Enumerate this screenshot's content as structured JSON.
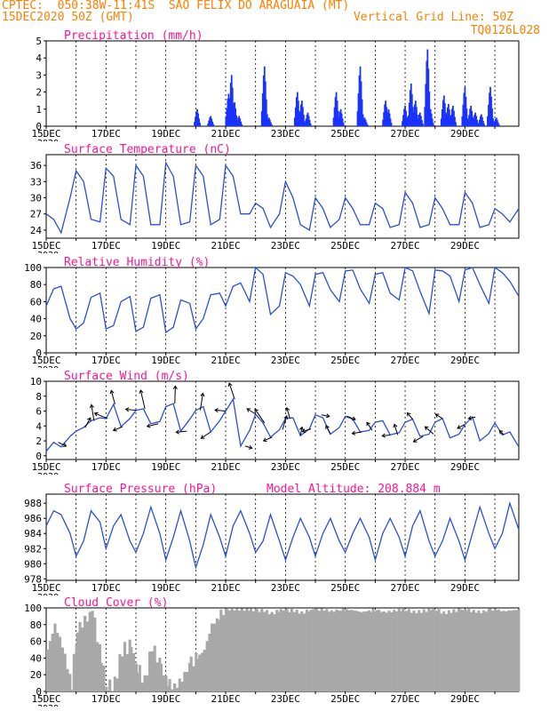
{
  "header": {
    "line1": "CPTEC:  050:38W-11:41S  SAO FELIX DO ARAGUAIA (MT)",
    "line2_left": "15DEC2020 50Z (GMT)",
    "line2_right": "Vertical Grid Line: 50Z",
    "line3_right": "TQ0126L028"
  },
  "colors": {
    "header": "#ff7f00",
    "title": "#ff1493",
    "line": "#2a4fd8",
    "bar": "#1a33ff",
    "cloud": "#a8a8a8",
    "grid": "#000000"
  },
  "x_ticks": [
    "15DEC",
    "17DEC",
    "19DEC",
    "21DEC",
    "23DEC",
    "25DEC",
    "27DEC",
    "29DEC"
  ],
  "x_clip_label": "2020",
  "chart_data": [
    {
      "type": "bar",
      "title": "Precipitation (mm/h)",
      "ylim": [
        0,
        5
      ],
      "yticks": [
        0,
        1,
        2,
        3,
        4,
        5
      ],
      "xlim_days": [
        0,
        15.8
      ],
      "events": [
        [
          5.05,
          1.0
        ],
        [
          5.5,
          0.6
        ],
        [
          6.1,
          1.9
        ],
        [
          6.2,
          3.0
        ],
        [
          6.3,
          1.4
        ],
        [
          6.45,
          0.6
        ],
        [
          7.3,
          3.5
        ],
        [
          7.45,
          0.5
        ],
        [
          8.4,
          2.0
        ],
        [
          8.55,
          1.5
        ],
        [
          8.75,
          0.8
        ],
        [
          9.7,
          2.0
        ],
        [
          9.85,
          1.0
        ],
        [
          10.5,
          3.5
        ],
        [
          10.65,
          0.5
        ],
        [
          11.35,
          1.5
        ],
        [
          11.45,
          1.0
        ],
        [
          12.0,
          1.2
        ],
        [
          12.2,
          2.5
        ],
        [
          12.35,
          1.5
        ],
        [
          12.5,
          0.8
        ],
        [
          12.75,
          4.5
        ],
        [
          12.85,
          1.0
        ],
        [
          13.3,
          1.8
        ],
        [
          13.45,
          1.3
        ],
        [
          13.6,
          1.2
        ],
        [
          14.0,
          2.3
        ],
        [
          14.2,
          1.2
        ],
        [
          14.35,
          0.8
        ],
        [
          14.55,
          0.7
        ],
        [
          14.85,
          2.3
        ],
        [
          15.05,
          0.5
        ]
      ]
    },
    {
      "type": "line",
      "title": "Surface Temperature (nC)",
      "ylim": [
        22.5,
        38
      ],
      "yticks": [
        24,
        27,
        30,
        33,
        36
      ],
      "x": [
        0,
        0.25,
        0.5,
        0.8,
        1,
        1.25,
        1.5,
        1.8,
        2,
        2.25,
        2.5,
        2.8,
        3,
        3.25,
        3.5,
        3.8,
        4,
        4.25,
        4.5,
        4.8,
        5,
        5.25,
        5.5,
        5.8,
        6,
        6.25,
        6.5,
        6.8,
        7,
        7.25,
        7.5,
        7.8,
        8,
        8.25,
        8.5,
        8.8,
        9,
        9.25,
        9.5,
        9.8,
        10,
        10.25,
        10.5,
        10.8,
        11,
        11.25,
        11.5,
        11.8,
        12,
        12.25,
        12.5,
        12.8,
        13,
        13.25,
        13.5,
        13.8,
        14,
        14.25,
        14.5,
        14.8,
        15,
        15.25,
        15.5,
        15.8
      ],
      "y": [
        27,
        26,
        23.5,
        30,
        35,
        33,
        26,
        25.5,
        35.5,
        34,
        26,
        25,
        36,
        34,
        25,
        25,
        36.5,
        34,
        25,
        25.5,
        36,
        34,
        25,
        26,
        36,
        34,
        27,
        27,
        29,
        28,
        24.5,
        27,
        33,
        30,
        25,
        24,
        30,
        28,
        24.5,
        26,
        30,
        28,
        25,
        25,
        29,
        28,
        24.5,
        25,
        31,
        29,
        24.5,
        25,
        30,
        28,
        25,
        25,
        31,
        29,
        24.5,
        25,
        28,
        27,
        25.5,
        28
      ]
    },
    {
      "type": "line",
      "title": "Relative Humidity (%)",
      "ylim": [
        0,
        100
      ],
      "yticks": [
        0,
        20,
        40,
        60,
        80,
        100
      ],
      "x": [
        0,
        0.25,
        0.5,
        0.8,
        1,
        1.25,
        1.5,
        1.8,
        2,
        2.25,
        2.5,
        2.8,
        3,
        3.25,
        3.5,
        3.8,
        4,
        4.25,
        4.5,
        4.8,
        5,
        5.25,
        5.5,
        5.8,
        6,
        6.25,
        6.5,
        6.8,
        7,
        7.25,
        7.5,
        7.8,
        8,
        8.25,
        8.5,
        8.8,
        9,
        9.25,
        9.5,
        9.8,
        10,
        10.25,
        10.5,
        10.8,
        11,
        11.25,
        11.5,
        11.8,
        12,
        12.25,
        12.5,
        12.8,
        13,
        13.25,
        13.5,
        13.8,
        14,
        14.25,
        14.5,
        14.8,
        15,
        15.25,
        15.5,
        15.8
      ],
      "y": [
        55,
        75,
        78,
        40,
        28,
        35,
        65,
        70,
        28,
        32,
        60,
        66,
        25,
        30,
        64,
        68,
        24,
        30,
        62,
        58,
        28,
        40,
        68,
        70,
        55,
        78,
        82,
        60,
        100,
        92,
        45,
        55,
        94,
        90,
        80,
        55,
        92,
        94,
        74,
        60,
        96,
        97,
        75,
        58,
        92,
        94,
        70,
        62,
        100,
        96,
        72,
        46,
        97,
        96,
        90,
        60,
        97,
        100,
        80,
        58,
        100,
        94,
        84,
        66
      ]
    },
    {
      "type": "line",
      "title": "Surface Wind (m/s)",
      "ylim": [
        -0.5,
        10
      ],
      "yticks": [
        0,
        2,
        4,
        6,
        8,
        10
      ],
      "x": [
        0,
        0.25,
        0.5,
        0.8,
        1,
        1.25,
        1.5,
        1.8,
        2,
        2.25,
        2.5,
        2.8,
        3,
        3.25,
        3.5,
        3.8,
        4,
        4.25,
        4.5,
        4.8,
        5,
        5.25,
        5.5,
        5.8,
        6,
        6.25,
        6.5,
        6.8,
        7,
        7.25,
        7.5,
        7.8,
        8,
        8.25,
        8.5,
        8.8,
        9,
        9.25,
        9.5,
        9.8,
        10,
        10.25,
        10.5,
        10.8,
        11,
        11.25,
        11.5,
        11.8,
        12,
        12.25,
        12.5,
        12.8,
        13,
        13.25,
        13.5,
        13.8,
        14,
        14.25,
        14.5,
        14.8,
        15,
        15.25,
        15.5,
        15.8
      ],
      "y": [
        0.6,
        1.8,
        1.2,
        2.6,
        3.3,
        3.8,
        4.7,
        5.1,
        5.0,
        6.9,
        3.9,
        5.0,
        6.1,
        6.3,
        4.3,
        4.6,
        6.6,
        7.0,
        3.3,
        4.9,
        6.1,
        6.6,
        3.2,
        4.7,
        6.0,
        7.6,
        1.3,
        3.4,
        5.6,
        4.4,
        2.5,
        3.5,
        5.0,
        5.1,
        2.7,
        3.6,
        5.5,
        5.1,
        2.9,
        3.8,
        5.3,
        4.9,
        3.2,
        3.4,
        4.5,
        4.7,
        2.8,
        3.1,
        4.5,
        4.9,
        2.6,
        2.9,
        4.5,
        5.0,
        2.4,
        2.9,
        4.2,
        5.2,
        2.0,
        3.0,
        4.4,
        2.8,
        3.2,
        1.2
      ],
      "vectors": [
        [
          0.4,
          1.5,
          -0.7
        ],
        [
          1.3,
          1.0,
          1.8
        ],
        [
          1.6,
          -0.5,
          3.0
        ],
        [
          2.05,
          -2.4,
          1.0
        ],
        [
          2.3,
          -0.7,
          2.6
        ],
        [
          2.55,
          -1.7,
          -0.7
        ],
        [
          3.0,
          -1.9,
          0.2
        ],
        [
          3.3,
          -0.8,
          3.5
        ],
        [
          3.75,
          -2.1,
          -0.5
        ],
        [
          4.3,
          0.1,
          3.3
        ],
        [
          4.7,
          -2.0,
          -0.2
        ],
        [
          5.15,
          0.5,
          3.2
        ],
        [
          5.5,
          -1.8,
          -1.2
        ],
        [
          6.0,
          -2.0,
          0.2
        ],
        [
          6.3,
          -1.0,
          3.0
        ],
        [
          6.65,
          1.3,
          -0.4
        ],
        [
          7.0,
          -1.6,
          1.0
        ],
        [
          7.3,
          -1.8,
          2.6
        ],
        [
          7.55,
          -1.6,
          -0.7
        ],
        [
          7.9,
          0.8,
          2.6
        ],
        [
          8.15,
          -0.6,
          2.0
        ],
        [
          8.5,
          0.3,
          1.6
        ],
        [
          8.85,
          -1.6,
          -0.5
        ],
        [
          9.2,
          1.5,
          -0.3
        ],
        [
          9.5,
          -0.8,
          1.6
        ],
        [
          10.05,
          1.6,
          -0.6
        ],
        [
          10.55,
          -1.8,
          -0.3
        ],
        [
          10.9,
          -1.0,
          1.5
        ],
        [
          11.5,
          -1.5,
          -0.2
        ],
        [
          11.75,
          -0.6,
          2.0
        ],
        [
          12.25,
          -1.0,
          1.2
        ],
        [
          12.6,
          -1.8,
          -1.0
        ],
        [
          12.95,
          -1.6,
          1.4
        ],
        [
          13.25,
          -1.3,
          0.8
        ],
        [
          14.0,
          -1.4,
          -0.7
        ],
        [
          14.35,
          -1.3,
          -0.3
        ],
        [
          15.3,
          -0.8,
          0.8
        ]
      ]
    },
    {
      "type": "line",
      "title": "Surface Pressure (hPa)",
      "annotation": "Model Altitude: 208.884 m",
      "ylim": [
        977.8,
        989.2
      ],
      "yticks": [
        978,
        980,
        982,
        984,
        986,
        988
      ],
      "x": [
        0,
        0.25,
        0.5,
        0.8,
        1,
        1.25,
        1.5,
        1.8,
        2,
        2.25,
        2.5,
        2.8,
        3,
        3.25,
        3.5,
        3.8,
        4,
        4.25,
        4.5,
        4.8,
        5,
        5.25,
        5.5,
        5.8,
        6,
        6.25,
        6.5,
        6.8,
        7,
        7.25,
        7.5,
        7.8,
        8,
        8.25,
        8.5,
        8.8,
        9,
        9.25,
        9.5,
        9.8,
        10,
        10.25,
        10.5,
        10.8,
        11,
        11.25,
        11.5,
        11.8,
        12,
        12.25,
        12.5,
        12.8,
        13,
        13.25,
        13.5,
        13.8,
        14,
        14.25,
        14.5,
        14.8,
        15,
        15.25,
        15.5,
        15.8
      ],
      "y": [
        985,
        987,
        986.5,
        984,
        981,
        983,
        987,
        985.5,
        982,
        985,
        986.5,
        983,
        981.5,
        984,
        987.5,
        984,
        980.5,
        983.5,
        987,
        983,
        979.5,
        982.5,
        986.5,
        983.5,
        981,
        985,
        987,
        984,
        981.5,
        983,
        986.5,
        983,
        980.5,
        983.5,
        986,
        983.5,
        981,
        984,
        986,
        983,
        981.5,
        984,
        986,
        983.5,
        980.5,
        984,
        986,
        983.5,
        981,
        985,
        987,
        983,
        981,
        983,
        986,
        983,
        980.5,
        984,
        987.5,
        984,
        982,
        984,
        988,
        984.5
      ]
    },
    {
      "type": "area",
      "title": "Cloud Cover (%)",
      "ylim": [
        0,
        100
      ],
      "yticks": [
        0,
        20,
        40,
        60,
        80,
        100
      ],
      "x": [
        0,
        0.25,
        0.5,
        0.8,
        1,
        1.25,
        1.5,
        1.8,
        2,
        2.25,
        2.5,
        2.8,
        3,
        3.25,
        3.5,
        3.8,
        4,
        4.25,
        4.5,
        4.8,
        5,
        5.25,
        5.5,
        5.8,
        6,
        6.25,
        6.5,
        6.8,
        7,
        7.25,
        7.5,
        7.8,
        8,
        8.25,
        8.5,
        8.8,
        9,
        9.25,
        9.5,
        9.8,
        10,
        10.25,
        10.5,
        10.8,
        11,
        11.25,
        11.5,
        11.8,
        12,
        12.25,
        12.5,
        12.8,
        13,
        13.25,
        13.5,
        13.8,
        14,
        14.25,
        14.5,
        14.8,
        15,
        15.25,
        15.5,
        15.8
      ],
      "y": [
        50,
        80,
        55,
        10,
        75,
        85,
        98,
        40,
        5,
        10,
        50,
        55,
        30,
        12,
        55,
        30,
        12,
        5,
        15,
        35,
        40,
        50,
        80,
        90,
        98,
        98,
        98,
        98,
        97,
        97,
        93,
        98,
        97,
        97,
        94,
        98,
        98,
        98,
        96,
        98,
        98,
        97,
        95,
        97,
        98,
        95,
        96,
        98,
        98,
        95,
        96,
        98,
        98,
        94,
        96,
        98,
        98,
        96,
        95,
        98,
        98,
        96,
        97,
        98
      ]
    }
  ]
}
